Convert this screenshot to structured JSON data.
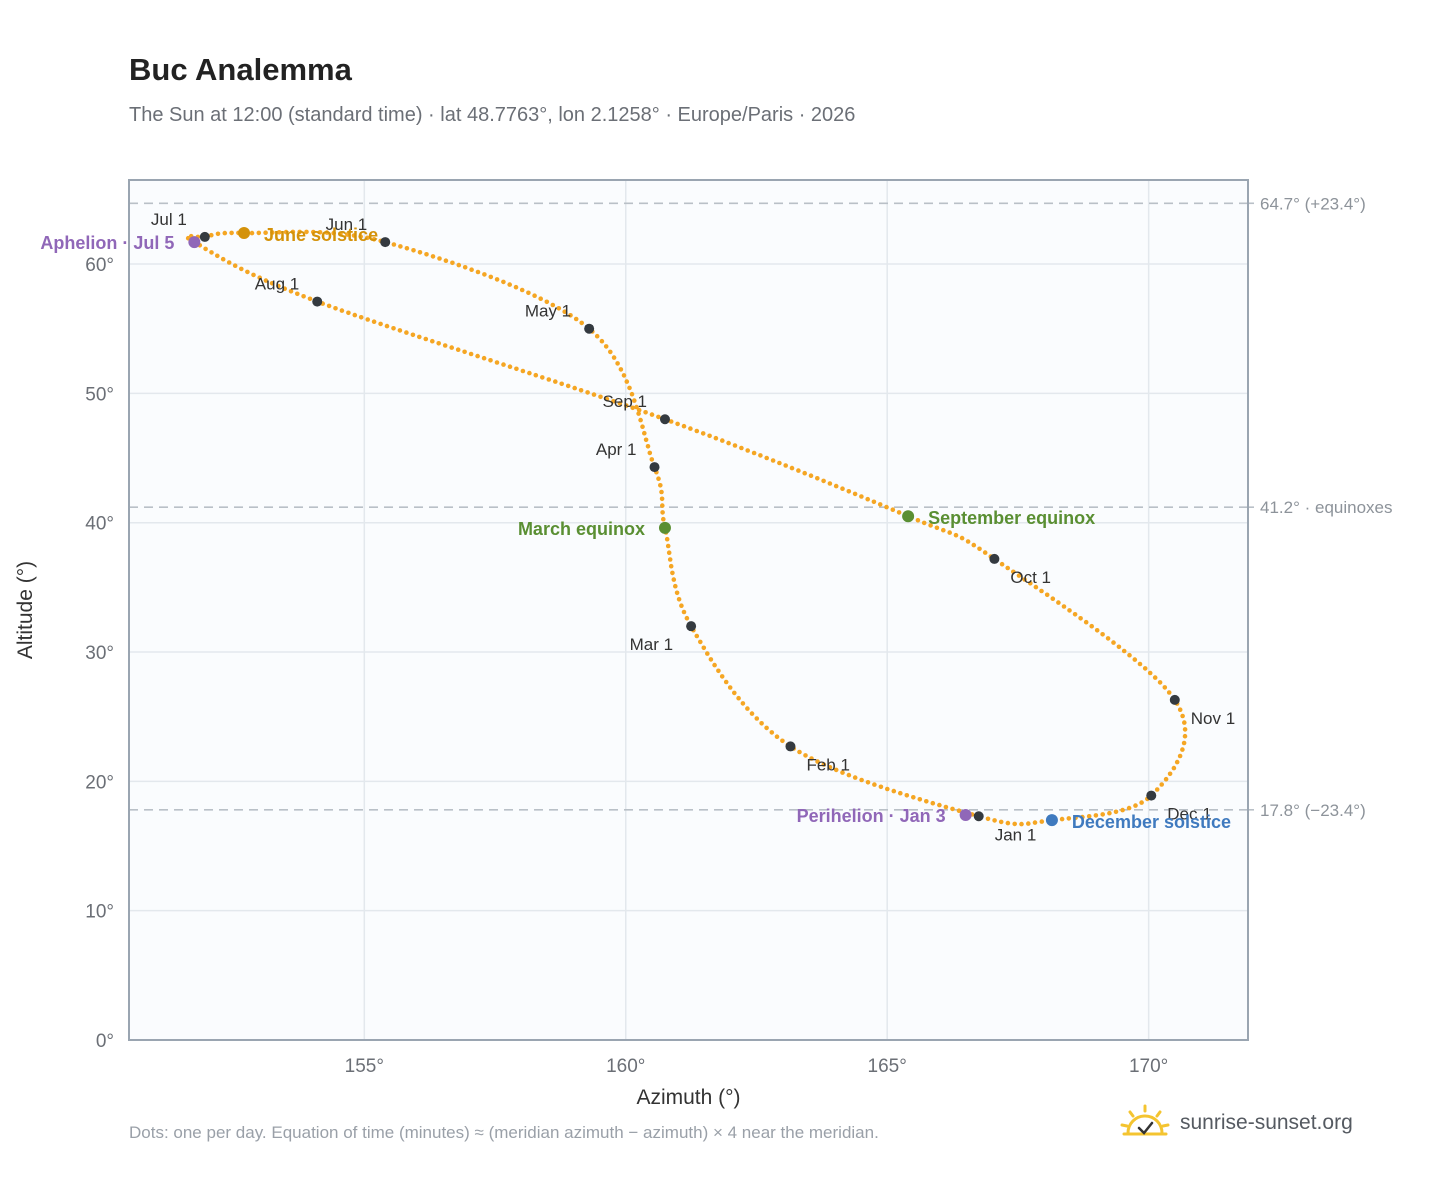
{
  "title": "Buc Analemma",
  "subtitle": "The Sun at 12:00 (standard time) · lat 48.7763°, lon 2.1258° · Europe/Paris · 2026",
  "footnote": "Dots: one per day. Equation of time (minutes) ≈ (meridian azimuth − azimuth) × 4 near the meridian.",
  "brand": {
    "name": "sunrise-sunset.org",
    "icon": "sun-check-icon",
    "color": "#f4c430"
  },
  "colors": {
    "curve": "#f5a623",
    "month_dot": "#343a40",
    "aphelion": "#9067b8",
    "june_solstice": "#d4920a",
    "equinox": "#5a8f33",
    "december_solstice": "#3f7abf",
    "plot_bg": "#fafcfe",
    "grid": "#e3e8ed",
    "frame": "#9aa5b1",
    "ref_line": "#b9c0c7"
  },
  "chart_data": {
    "type": "scatter",
    "title": "Buc Analemma",
    "xlabel": "Azimuth (°)",
    "ylabel": "Altitude (°)",
    "xlim": [
      150.5,
      171.9
    ],
    "ylim": [
      0,
      66.5
    ],
    "x_ticks": [
      155,
      160,
      165,
      170
    ],
    "x_tick_labels": [
      "155°",
      "160°",
      "165°",
      "170°"
    ],
    "y_ticks": [
      0,
      10,
      20,
      30,
      40,
      50,
      60
    ],
    "y_tick_labels": [
      "0°",
      "10°",
      "20°",
      "30°",
      "40°",
      "50°",
      "60°"
    ],
    "grid": true,
    "reference_lines": [
      {
        "altitude": 64.7,
        "label": "64.7° (+23.4°)"
      },
      {
        "altitude": 41.2,
        "label": "41.2° · equinoxes"
      },
      {
        "altitude": 17.8,
        "label": "17.8° (−23.4°)"
      }
    ],
    "curve_path": [
      {
        "date": "Jan 1",
        "az": 166.75,
        "alt": 17.3
      },
      {
        "date": "Feb 1",
        "az": 163.15,
        "alt": 22.7
      },
      {
        "date": "Mar 1",
        "az": 161.25,
        "alt": 32.0
      },
      {
        "date": "Mar 20",
        "az": 160.75,
        "alt": 39.6
      },
      {
        "date": "Apr 1",
        "az": 160.55,
        "alt": 44.3
      },
      {
        "date": "May 1",
        "az": 159.3,
        "alt": 55.0
      },
      {
        "date": "Jun 1",
        "az": 155.4,
        "alt": 61.7
      },
      {
        "date": "Jun 21",
        "az": 152.7,
        "alt": 62.4
      },
      {
        "date": "Jul 1",
        "az": 151.95,
        "alt": 62.1
      },
      {
        "date": "Jul 5",
        "az": 151.75,
        "alt": 61.7
      },
      {
        "date": "Aug 1",
        "az": 154.1,
        "alt": 57.1
      },
      {
        "date": "Sep 1",
        "az": 160.75,
        "alt": 48.0
      },
      {
        "date": "Sep 22",
        "az": 165.4,
        "alt": 40.5
      },
      {
        "date": "Oct 1",
        "az": 167.05,
        "alt": 37.2
      },
      {
        "date": "Nov 1",
        "az": 170.5,
        "alt": 26.3
      },
      {
        "date": "Dec 1",
        "az": 170.05,
        "alt": 18.9
      },
      {
        "date": "Dec 21",
        "az": 168.15,
        "alt": 17.0
      },
      {
        "date": "Jan 1 (next)",
        "az": 166.75,
        "alt": 17.3
      }
    ],
    "month_markers": [
      {
        "label": "Jan 1",
        "az": 166.75,
        "alt": 17.3,
        "anchor": "start",
        "dx": 16,
        "dy": 24
      },
      {
        "label": "Feb 1",
        "az": 163.15,
        "alt": 22.7,
        "anchor": "start",
        "dx": 16,
        "dy": 24
      },
      {
        "label": "Mar 1",
        "az": 161.25,
        "alt": 32.0,
        "anchor": "end",
        "dx": -18,
        "dy": 24
      },
      {
        "label": "Apr 1",
        "az": 160.55,
        "alt": 44.3,
        "anchor": "end",
        "dx": -18,
        "dy": -12
      },
      {
        "label": "May 1",
        "az": 159.3,
        "alt": 55.0,
        "anchor": "end",
        "dx": -18,
        "dy": -12
      },
      {
        "label": "Jun 1",
        "az": 155.4,
        "alt": 61.7,
        "anchor": "end",
        "dx": -18,
        "dy": -12
      },
      {
        "label": "Jul 1",
        "az": 151.95,
        "alt": 62.1,
        "anchor": "end",
        "dx": -18,
        "dy": -12
      },
      {
        "label": "Aug 1",
        "az": 154.1,
        "alt": 57.1,
        "anchor": "end",
        "dx": -18,
        "dy": -12
      },
      {
        "label": "Sep 1",
        "az": 160.75,
        "alt": 48.0,
        "anchor": "end",
        "dx": -18,
        "dy": -12
      },
      {
        "label": "Oct 1",
        "az": 167.05,
        "alt": 37.2,
        "anchor": "start",
        "dx": 16,
        "dy": 24
      },
      {
        "label": "Nov 1",
        "az": 170.5,
        "alt": 26.3,
        "anchor": "start",
        "dx": 16,
        "dy": 24
      },
      {
        "label": "Dec 1",
        "az": 170.05,
        "alt": 18.9,
        "anchor": "start",
        "dx": 16,
        "dy": 24
      }
    ],
    "events": [
      {
        "label": "Aphelion · Jul 5",
        "az": 151.75,
        "alt": 61.7,
        "color": "#9067b8",
        "anchor": "end",
        "dx": -20,
        "dy": 7
      },
      {
        "label": "June solstice",
        "az": 152.7,
        "alt": 62.4,
        "color": "#d4920a",
        "anchor": "start",
        "dx": 20,
        "dy": 8
      },
      {
        "label": "March equinox",
        "az": 160.75,
        "alt": 39.6,
        "color": "#5a8f33",
        "anchor": "end",
        "dx": -20,
        "dy": 7
      },
      {
        "label": "September equinox",
        "az": 165.4,
        "alt": 40.5,
        "color": "#5a8f33",
        "anchor": "start",
        "dx": 20,
        "dy": 8
      },
      {
        "label": "Perihelion · Jan 3",
        "az": 166.5,
        "alt": 17.4,
        "color": "#9067b8",
        "anchor": "end",
        "dx": -20,
        "dy": 7
      },
      {
        "label": "December solstice",
        "az": 168.15,
        "alt": 17.0,
        "color": "#3f7abf",
        "anchor": "start",
        "dx": 20,
        "dy": 8
      }
    ]
  }
}
